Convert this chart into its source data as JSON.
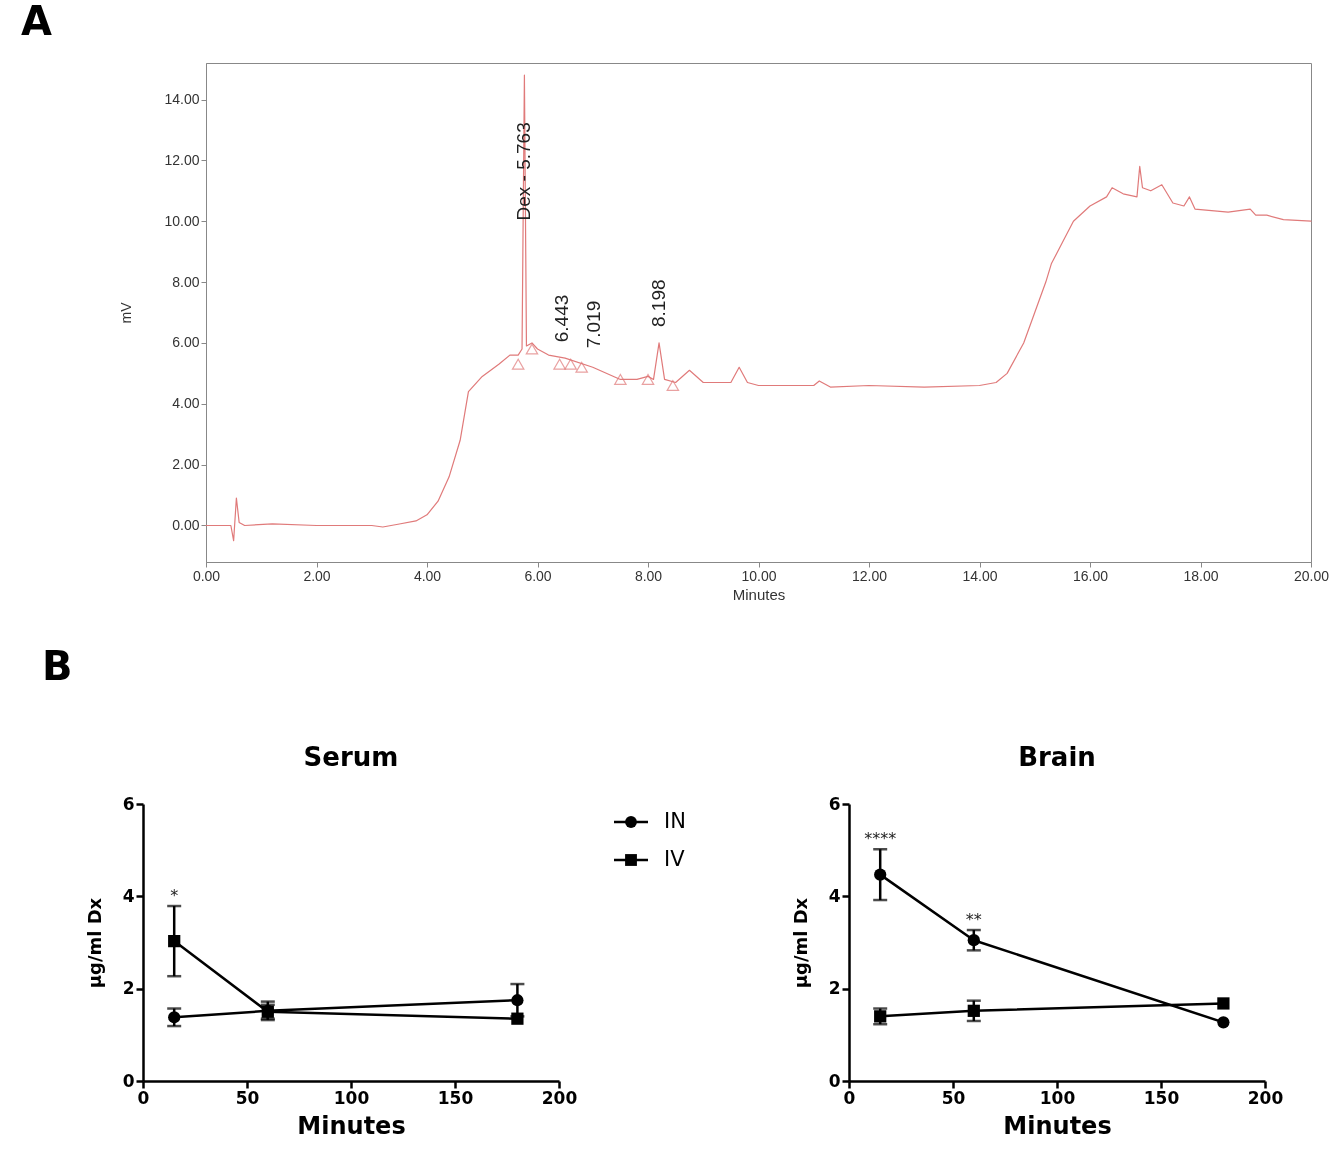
{
  "chart_data": [
    {
      "type": "line",
      "xlabel": "Minutes",
      "ylabel": "mV",
      "xlim": [
        0,
        20
      ],
      "ylim": [
        -1.2,
        15.2
      ],
      "xticks": [
        {
          "value": 0,
          "label": "0.00"
        },
        {
          "value": 2,
          "label": "2.00"
        },
        {
          "value": 4,
          "label": "4.00"
        },
        {
          "value": 6,
          "label": "6.00"
        },
        {
          "value": 8,
          "label": "8.00"
        },
        {
          "value": 10,
          "label": "10.00"
        },
        {
          "value": 12,
          "label": "12.00"
        },
        {
          "value": 14,
          "label": "14.00"
        },
        {
          "value": 16,
          "label": "16.00"
        },
        {
          "value": 18,
          "label": "18.00"
        },
        {
          "value": 20,
          "label": "20.00"
        }
      ],
      "yticks": [
        {
          "value": 0,
          "label": "0.00"
        },
        {
          "value": 2,
          "label": "2.00"
        },
        {
          "value": 4,
          "label": "4.00"
        },
        {
          "value": 6,
          "label": "6.00"
        },
        {
          "value": 8,
          "label": "8.00"
        },
        {
          "value": 10,
          "label": "10.00"
        },
        {
          "value": 12,
          "label": "12.00"
        },
        {
          "value": 14,
          "label": "14.00"
        }
      ],
      "series": [
        {
          "color": "#e07a7a",
          "marker": "none",
          "x": [
            0,
            0.45,
            0.5,
            0.55,
            0.6,
            0.7,
            1.2,
            2.0,
            3.0,
            3.2,
            3.5,
            3.8,
            4.0,
            4.2,
            4.4,
            4.6,
            4.75,
            5.0,
            5.3,
            5.5,
            5.65,
            5.72,
            5.763,
            5.8,
            5.9,
            6.0,
            6.2,
            6.5,
            7.0,
            7.5,
            7.8,
            8.0,
            8.1,
            8.2,
            8.3,
            8.5,
            8.75,
            9.0,
            9.5,
            9.65,
            9.8,
            10.0,
            11.0,
            11.1,
            11.3,
            12.0,
            13.0,
            14.0,
            14.3,
            14.5,
            14.8,
            15.0,
            15.2,
            15.3,
            15.5,
            15.7,
            16.0,
            16.3,
            16.4,
            16.6,
            16.85,
            16.9,
            16.95,
            17.1,
            17.3,
            17.5,
            17.7,
            17.8,
            17.9,
            18.5,
            18.9,
            19.0,
            19.2,
            19.5,
            20.0
          ],
          "values": [
            0,
            0,
            -0.5,
            0.9,
            0.1,
            0,
            0.05,
            0,
            0,
            -0.05,
            0.05,
            0.15,
            0.35,
            0.8,
            1.6,
            2.8,
            4.4,
            4.9,
            5.3,
            5.6,
            5.6,
            5.8,
            14.8,
            5.9,
            6.0,
            5.8,
            5.6,
            5.5,
            5.2,
            4.8,
            4.8,
            4.9,
            4.8,
            6.0,
            4.8,
            4.7,
            5.1,
            4.7,
            4.7,
            5.2,
            4.7,
            4.6,
            4.6,
            4.75,
            4.55,
            4.6,
            4.55,
            4.6,
            4.7,
            5.0,
            6.0,
            7.0,
            8.0,
            8.6,
            9.3,
            10.0,
            10.5,
            10.8,
            11.1,
            10.9,
            10.8,
            11.8,
            11.1,
            11.0,
            11.2,
            10.6,
            10.5,
            10.8,
            10.4,
            10.3,
            10.4,
            10.2,
            10.2,
            10.05,
            10.0
          ]
        },
        {
          "type": "scatter",
          "marker": "triangle",
          "color": "#e07a7a",
          "x": [
            5.65,
            5.9,
            6.4,
            6.6,
            6.8,
            7.5,
            8.0,
            8.45
          ],
          "values": [
            5.3,
            5.8,
            5.3,
            5.3,
            5.2,
            4.8,
            4.8,
            4.6
          ]
        }
      ],
      "annotations": [
        "A",
        {
          "text": "Dex - 5.763",
          "x": 5.763,
          "y": 9.3
        },
        {
          "text": "6.443",
          "x": 6.443,
          "y": 5.3
        },
        {
          "text": "7.019",
          "x": 7.019,
          "y": 5.1
        },
        {
          "text": "8.198",
          "x": 8.198,
          "y": 5.8
        }
      ]
    },
    {
      "type": "line",
      "title": "Serum",
      "xlabel": "Minutes",
      "ylabel": "µg/ml Dx",
      "xlim": [
        0,
        200
      ],
      "ylim": [
        0,
        6
      ],
      "xticks": [
        0,
        50,
        100,
        150,
        200
      ],
      "yticks": [
        0,
        2,
        4,
        6
      ],
      "legend": "right",
      "x": [
        15,
        60,
        180
      ],
      "series": [
        {
          "name": "IN",
          "color": "#000000",
          "marker": "circle",
          "values": [
            1.38,
            1.52,
            1.75
          ],
          "errors": [
            0.19,
            0.2,
            0.35
          ]
        },
        {
          "name": "IV",
          "color": "#000000",
          "marker": "square",
          "values": [
            3.03,
            1.5,
            1.35
          ],
          "errors": [
            0.76,
            0.15,
            null
          ]
        }
      ],
      "annotations": [
        "B",
        {
          "text": "*",
          "x": 15,
          "y": 3.8
        }
      ]
    },
    {
      "type": "line",
      "title": "Brain",
      "xlabel": "Minutes",
      "ylabel": "µg/ml Dx",
      "xlim": [
        0,
        200
      ],
      "ylim": [
        0,
        6
      ],
      "xticks": [
        0,
        50,
        100,
        150,
        200
      ],
      "yticks": [
        0,
        2,
        4,
        6
      ],
      "x": [
        15,
        60,
        180
      ],
      "series": [
        {
          "color": "#000000",
          "marker": "circle",
          "values": [
            4.47,
            3.05,
            1.27
          ],
          "errors": [
            0.55,
            0.22,
            null
          ]
        },
        {
          "color": "#000000",
          "marker": "square",
          "values": [
            1.4,
            1.52,
            1.68
          ],
          "errors": [
            0.17,
            0.22,
            null
          ]
        }
      ],
      "annotations": [
        {
          "text": "****",
          "x": 15,
          "y": 5.02
        },
        {
          "text": "**",
          "x": 60,
          "y": 3.27
        }
      ]
    }
  ]
}
